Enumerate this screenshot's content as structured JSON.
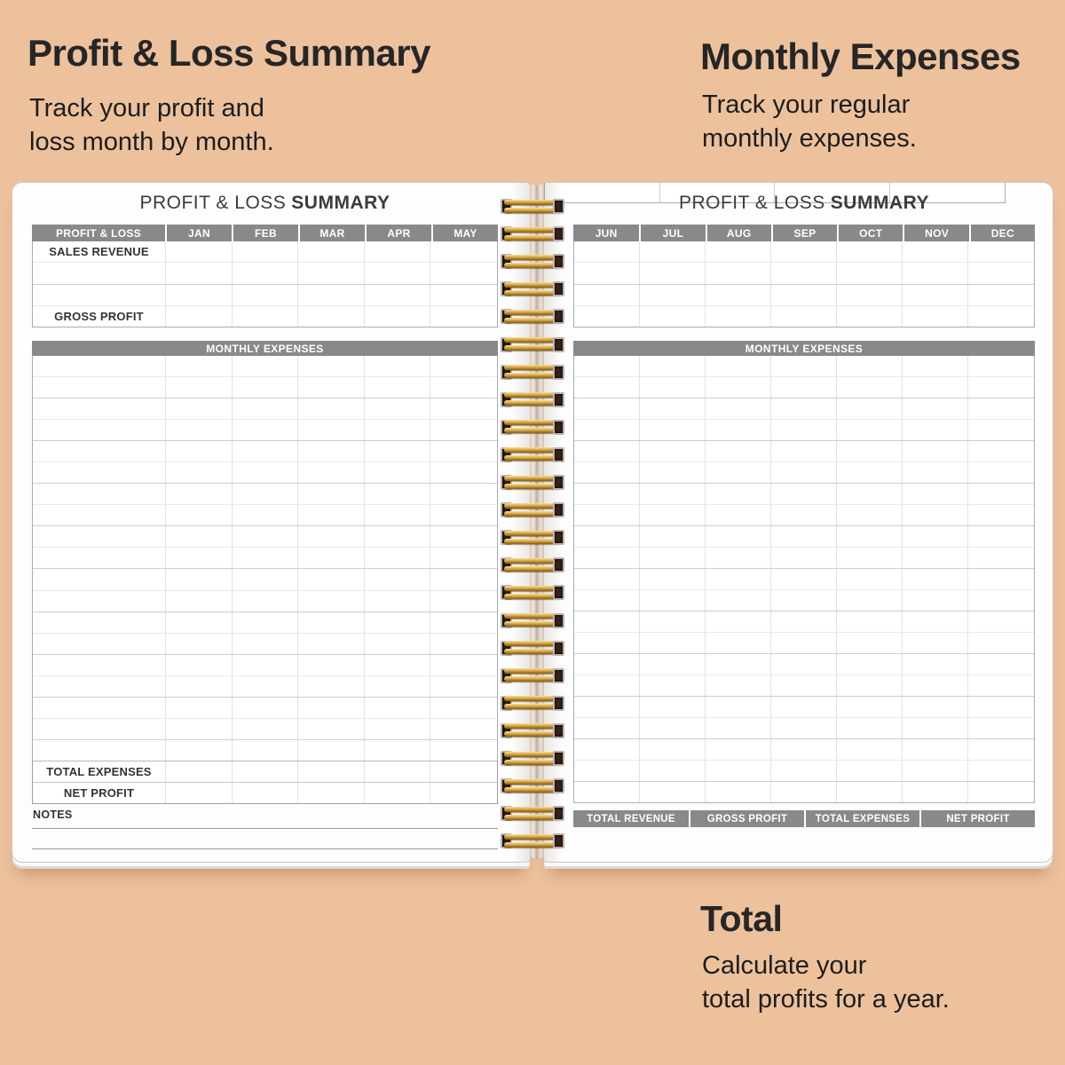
{
  "colors": {
    "background": "#ecc19c",
    "band_gray": "#898989",
    "gold": "#d3a03c",
    "page_white": "#fdfdfd",
    "heading_text": "#262626"
  },
  "annotations": {
    "profit_loss": {
      "title": "Profit & Loss Summary",
      "line1": "Track your profit and",
      "line2": "loss month by month."
    },
    "monthly_expenses": {
      "title": "Monthly Expenses",
      "line1": "Track your regular",
      "line2": "monthly expenses."
    },
    "total": {
      "title": "Total",
      "line1": "Calculate your",
      "line2": "total profits for a year."
    }
  },
  "left_page": {
    "title_regular": "PROFIT & LOSS",
    "title_bold": "SUMMARY",
    "header_cells": [
      "PROFIT & LOSS",
      "JAN",
      "FEB",
      "MAR",
      "APR",
      "MAY"
    ],
    "revenue_rows": [
      "SALES REVENUE",
      "",
      "",
      "GROSS PROFIT"
    ],
    "expenses_band": "MONTHLY EXPENSES",
    "expense_row_count": 19,
    "total_rows": [
      "TOTAL EXPENSES",
      "NET PROFIT"
    ],
    "notes_label": "NOTES",
    "notes_line_count": 2
  },
  "right_page": {
    "title_regular": "PROFIT & LOSS",
    "title_bold": "SUMMARY",
    "header_cells": [
      "JUN",
      "JUL",
      "AUG",
      "SEP",
      "OCT",
      "NOV",
      "DEC"
    ],
    "revenue_row_count": 4,
    "expenses_band": "MONTHLY EXPENSES",
    "expense_row_count": 21,
    "summary_header": [
      "TOTAL REVENUE",
      "GROSS PROFIT",
      "TOTAL EXPENSES",
      "NET PROFIT"
    ]
  },
  "spiral": {
    "coil_count": 24
  }
}
